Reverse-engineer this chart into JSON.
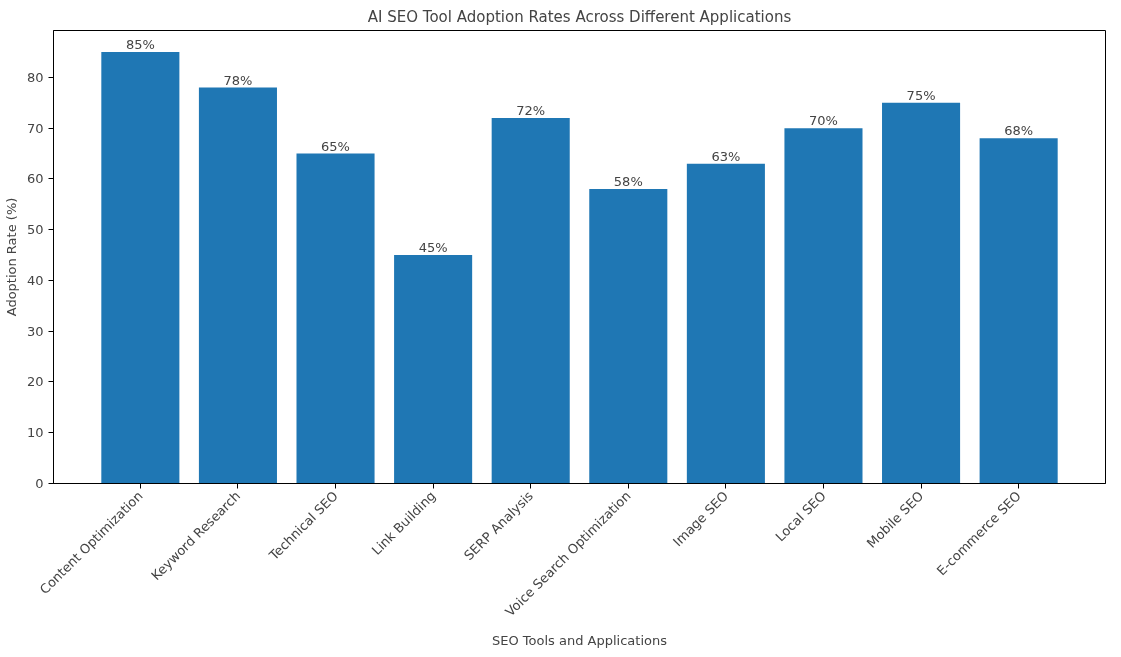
{
  "chart_data": {
    "type": "bar",
    "title": "AI SEO Tool Adoption Rates Across Different Applications",
    "xlabel": "SEO Tools and Applications",
    "ylabel": "Adoption Rate (%)",
    "categories": [
      "Content Optimization",
      "Keyword Research",
      "Technical SEO",
      "Link Building",
      "SERP Analysis",
      "Voice Search Optimization",
      "Image SEO",
      "Local SEO",
      "Mobile SEO",
      "E-commerce SEO"
    ],
    "values": [
      85,
      78,
      65,
      45,
      72,
      58,
      63,
      70,
      75,
      68
    ],
    "value_labels": [
      "85%",
      "78%",
      "65%",
      "45%",
      "72%",
      "58%",
      "63%",
      "70%",
      "75%",
      "68%"
    ],
    "color": "#1f77b4",
    "ylim": [
      0,
      89.25
    ],
    "yticks": [
      0,
      10,
      20,
      30,
      40,
      50,
      60,
      70,
      80
    ],
    "grid": false
  }
}
